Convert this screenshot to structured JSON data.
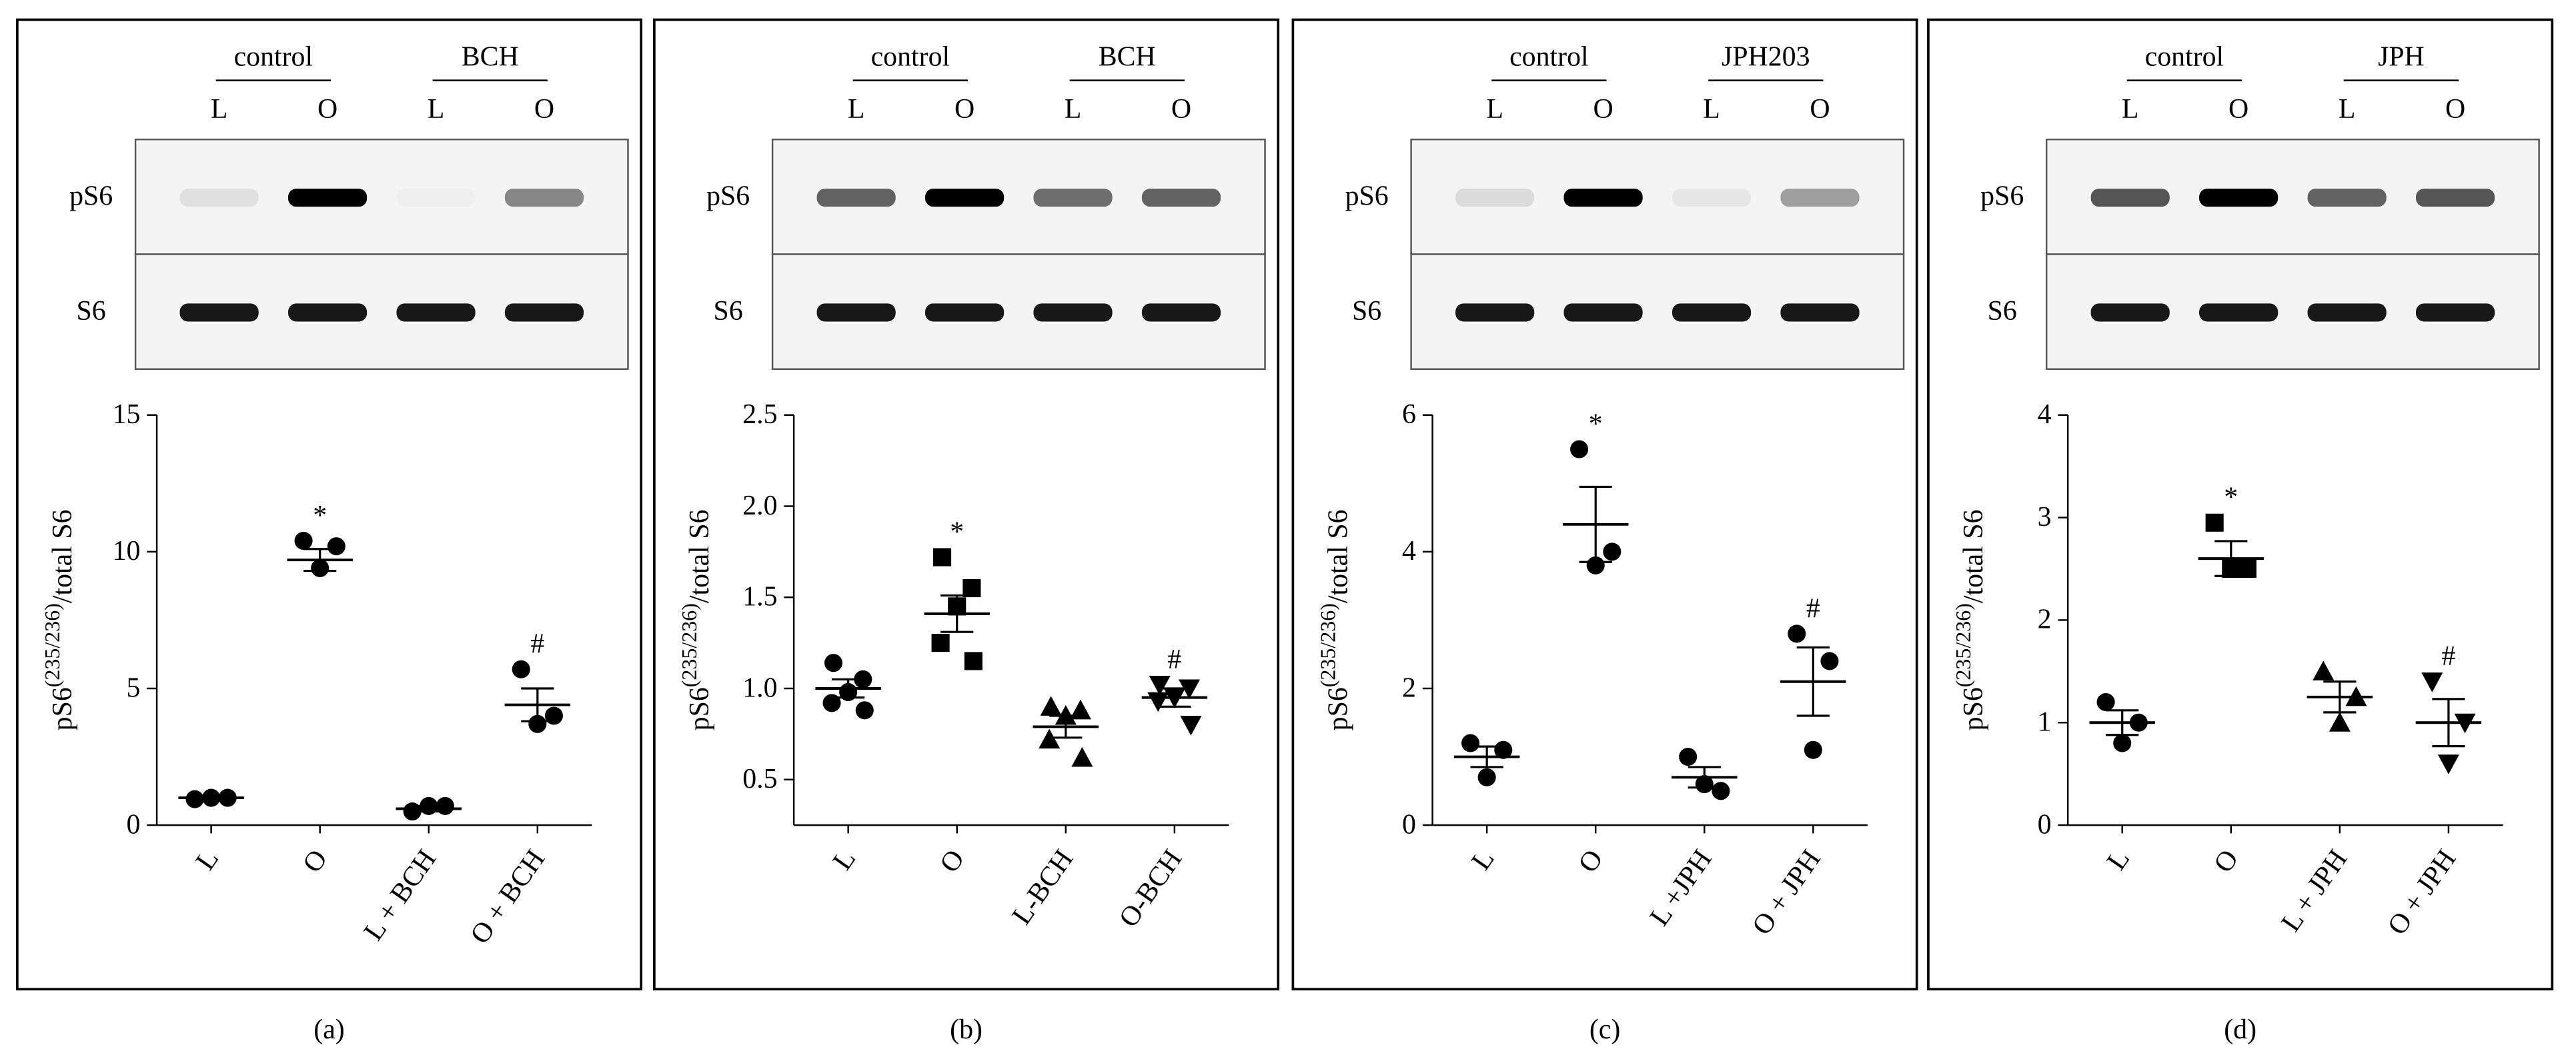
{
  "chart_data": [
    {
      "type": "dotplot",
      "panel_label": "(a)",
      "blot": {
        "groups": [
          "control",
          "BCH"
        ],
        "lanes": [
          "L",
          "O",
          "L",
          "O"
        ],
        "rows": [
          "pS6",
          "S6"
        ]
      },
      "y_label": [
        "pS6",
        "(235/236)",
        "/total S6"
      ],
      "categories": [
        "L",
        "O",
        "L + BCH",
        "O + BCH"
      ],
      "markers": [
        "circle",
        "circle",
        "circle",
        "circle"
      ],
      "values": [
        [
          0.95,
          1.0,
          1.0
        ],
        [
          10.4,
          10.2,
          9.4
        ],
        [
          0.5,
          0.7,
          0.7
        ],
        [
          5.7,
          4.0,
          3.7
        ]
      ],
      "means": [
        1.0,
        9.7,
        0.6,
        4.4
      ],
      "sems": [
        0.03,
        0.4,
        0.1,
        0.6
      ],
      "annotations": [
        null,
        "*",
        null,
        "#"
      ],
      "ylim": [
        0,
        15
      ],
      "yticks": [
        0,
        5,
        10,
        15
      ],
      "color": "#000000"
    },
    {
      "type": "dotplot",
      "panel_label": "(b)",
      "blot": {
        "groups": [
          "control",
          "BCH"
        ],
        "lanes": [
          "L",
          "O",
          "L",
          "O"
        ],
        "rows": [
          "pS6",
          "S6"
        ]
      },
      "y_label": [
        "pS6",
        "(235/236)",
        "/total S6"
      ],
      "categories": [
        "L",
        "O",
        "L-BCH",
        "O-BCH"
      ],
      "markers": [
        "circle",
        "square",
        "triangle-up",
        "triangle-down"
      ],
      "values": [
        [
          1.14,
          1.05,
          0.98,
          0.92,
          0.88
        ],
        [
          1.72,
          1.55,
          1.45,
          1.25,
          1.15
        ],
        [
          0.9,
          0.88,
          0.85,
          0.72,
          0.62
        ],
        [
          1.02,
          1.0,
          0.95,
          0.93,
          0.8
        ]
      ],
      "means": [
        1.0,
        1.41,
        0.79,
        0.95
      ],
      "sems": [
        0.05,
        0.1,
        0.06,
        0.05
      ],
      "annotations": [
        null,
        "*",
        null,
        "#"
      ],
      "ylim": [
        0.25,
        2.5
      ],
      "yticks": [
        {
          "value": 0.5,
          "label": "0.5"
        },
        {
          "value": 1,
          "label": "1.0"
        },
        {
          "value": 1.5,
          "label": "1.5"
        },
        {
          "value": 2,
          "label": "2.0"
        },
        {
          "value": 2.5,
          "label": "2.5"
        }
      ],
      "color": "#000000"
    },
    {
      "type": "dotplot",
      "panel_label": "(c)",
      "blot": {
        "groups": [
          "control",
          "JPH203"
        ],
        "lanes": [
          "L",
          "O",
          "L",
          "O"
        ],
        "rows": [
          "pS6",
          "S6"
        ]
      },
      "y_label": [
        "pS6",
        "(235/236)",
        "/total S6"
      ],
      "categories": [
        "L",
        "O",
        "L +JPH",
        "O + JPH"
      ],
      "markers": [
        "circle",
        "circle",
        "circle",
        "circle"
      ],
      "values": [
        [
          1.2,
          1.1,
          0.7
        ],
        [
          5.5,
          4.0,
          3.8
        ],
        [
          1.0,
          0.5,
          0.6
        ],
        [
          2.8,
          2.4,
          1.1
        ]
      ],
      "means": [
        1.0,
        4.4,
        0.7,
        2.1
      ],
      "sems": [
        0.15,
        0.55,
        0.15,
        0.5
      ],
      "annotations": [
        null,
        "*",
        null,
        "#"
      ],
      "ylim": [
        0,
        6
      ],
      "yticks": [
        0,
        2,
        4,
        6
      ],
      "color": "#000000"
    },
    {
      "type": "dotplot",
      "panel_label": "(d)",
      "blot": {
        "groups": [
          "control",
          "JPH"
        ],
        "lanes": [
          "L",
          "O",
          "L",
          "O"
        ],
        "rows": [
          "pS6",
          "S6"
        ]
      },
      "y_label": [
        "pS6",
        "(235/236)",
        "/total S6"
      ],
      "categories": [
        "L",
        "O",
        "L + JPH",
        "O + JPH"
      ],
      "markers": [
        "circle",
        "square",
        "triangle-up",
        "triangle-down"
      ],
      "values": [
        [
          1.2,
          1.0,
          0.8
        ],
        [
          2.95,
          2.5,
          2.5
        ],
        [
          1.5,
          1.25,
          1.0
        ],
        [
          1.4,
          1.0,
          0.6
        ]
      ],
      "means": [
        1.0,
        2.6,
        1.25,
        1.0
      ],
      "sems": [
        0.12,
        0.17,
        0.15,
        0.23
      ],
      "annotations": [
        null,
        "*",
        null,
        "#"
      ],
      "ylim": [
        0,
        4
      ],
      "yticks": [
        0,
        1,
        2,
        3,
        4
      ],
      "color": "#000000"
    }
  ]
}
